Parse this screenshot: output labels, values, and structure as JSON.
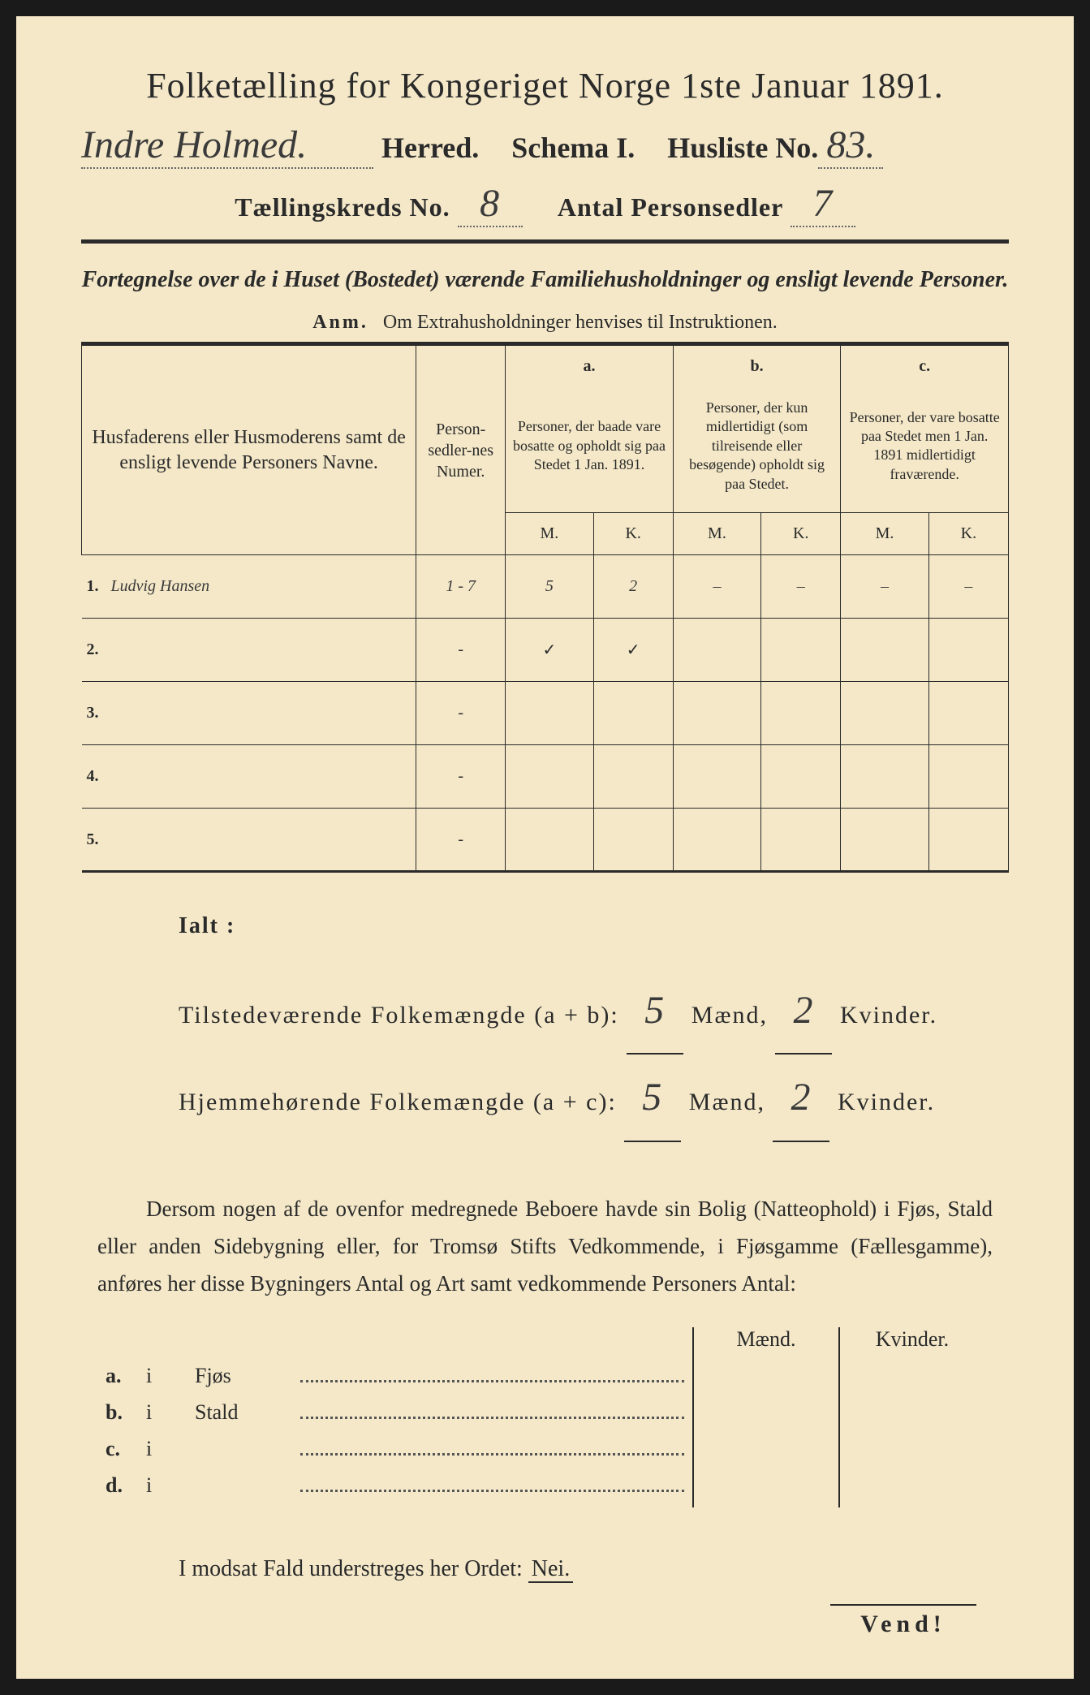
{
  "title": "Folketælling for Kongeriget Norge 1ste Januar 1891.",
  "header": {
    "herred_handwritten": "Indre Holmed.",
    "herred_label": "Herred.",
    "schema_label": "Schema I.",
    "husliste_label": "Husliste No.",
    "husliste_no": "83.",
    "kreds_label": "Tællingskreds No.",
    "kreds_no": "8",
    "antal_label": "Antal Personsedler",
    "antal_no": "7"
  },
  "subtitle": "Fortegnelse over de i Huset (Bostedet) værende Familiehusholdninger og ensligt levende Personer.",
  "anm_label": "Anm.",
  "anm_text": "Om Extrahusholdninger henvises til Instruktionen.",
  "table": {
    "col1": "Husfaderens eller Husmoderens samt de ensligt levende Personers Navne.",
    "col2": "Person-sedler-nes Numer.",
    "col_a_label": "a.",
    "col_a": "Personer, der baade vare bosatte og opholdt sig paa Stedet 1 Jan. 1891.",
    "col_b_label": "b.",
    "col_b": "Personer, der kun midlertidigt (som tilreisende eller besøgende) opholdt sig paa Stedet.",
    "col_c_label": "c.",
    "col_c": "Personer, der vare bosatte paa Stedet men 1 Jan. 1891 midlertidigt fraværende.",
    "M": "M.",
    "K": "K.",
    "rows": [
      {
        "n": "1.",
        "name": "Ludvig Hansen",
        "numer": "1 - 7",
        "aM": "5",
        "aK": "2",
        "bM": "–",
        "bK": "–",
        "cM": "–",
        "cK": "–"
      },
      {
        "n": "2.",
        "name": "",
        "numer": "-",
        "aM": "✓",
        "aK": "✓",
        "bM": "",
        "bK": "",
        "cM": "",
        "cK": ""
      },
      {
        "n": "3.",
        "name": "",
        "numer": "-",
        "aM": "",
        "aK": "",
        "bM": "",
        "bK": "",
        "cM": "",
        "cK": ""
      },
      {
        "n": "4.",
        "name": "",
        "numer": "-",
        "aM": "",
        "aK": "",
        "bM": "",
        "bK": "",
        "cM": "",
        "cK": ""
      },
      {
        "n": "5.",
        "name": "",
        "numer": "-",
        "aM": "",
        "aK": "",
        "bM": "",
        "bK": "",
        "cM": "",
        "cK": ""
      }
    ]
  },
  "ialt": {
    "label": "Ialt :",
    "line1_a": "Tilstedeværende Folkemængde (a + b):",
    "line2_a": "Hjemmehørende Folkemængde (a + c):",
    "maend": "Mænd,",
    "kvinder": "Kvinder.",
    "t_m": "5",
    "t_k": "2",
    "h_m": "5",
    "h_k": "2"
  },
  "paragraph": "Dersom nogen af de ovenfor medregnede Beboere havde sin Bolig (Natteophold) i Fjøs, Stald eller anden Sidebygning eller, for Tromsø Stifts Vedkommende, i Fjøsgamme (Fællesgamme), anføres her disse Bygningers Antal og Art samt vedkommende Personers Antal:",
  "side": {
    "maend": "Mænd.",
    "kvinder": "Kvinder.",
    "rows": [
      {
        "lbl": "a.",
        "i": "i",
        "txt": "Fjøs"
      },
      {
        "lbl": "b.",
        "i": "i",
        "txt": "Stald"
      },
      {
        "lbl": "c.",
        "i": "i",
        "txt": ""
      },
      {
        "lbl": "d.",
        "i": "i",
        "txt": ""
      }
    ]
  },
  "modsat": "I modsat Fald understreges her Ordet:",
  "nei": "Nei.",
  "vend": "Vend!"
}
